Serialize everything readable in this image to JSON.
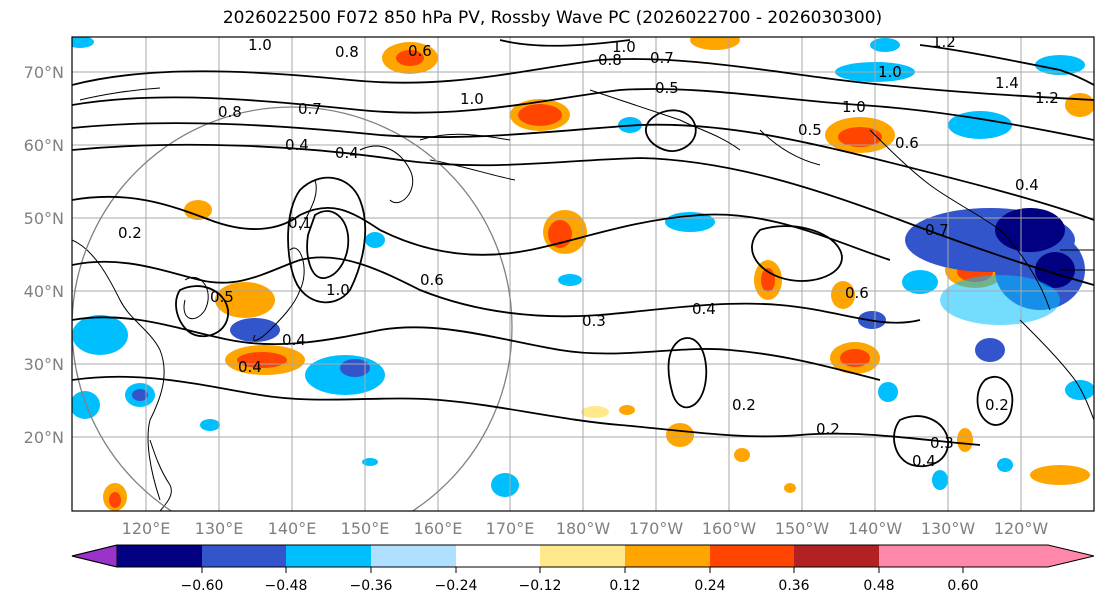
{
  "title": "2026022500 F072 850 hPa PV, Rossby Wave PC (2026022700 - 2026030300)",
  "lat_labels": [
    "70°N",
    "60°N",
    "50°N",
    "40°N",
    "30°N",
    "20°N"
  ],
  "lon_labels": [
    "120°E",
    "130°E",
    "140°E",
    "150°E",
    "160°E",
    "170°E",
    "180°W",
    "170°W",
    "160°W",
    "150°W",
    "140°W",
    "130°W",
    "120°W"
  ],
  "colorbar": {
    "colors": [
      "#9933cc",
      "#000080",
      "#3355cc",
      "#00bfff",
      "#b0e0ff",
      "#ffffff",
      "#ffe98a",
      "#ffa500",
      "#ff4500",
      "#b22222",
      "#ff88aa"
    ],
    "labels": [
      "−0.60",
      "−0.48",
      "−0.36",
      "−0.24",
      "−0.12",
      "0.12",
      "0.24",
      "0.36",
      "0.48",
      "0.60"
    ]
  },
  "contour_labels": [
    "1.0",
    "0.8",
    "0.6",
    "1.0",
    "0.7",
    "0.8",
    "0.5",
    "1.2",
    "1.0",
    "1.4",
    "1.2",
    "0.8",
    "0.7",
    "1.0",
    "0.4",
    "0.4",
    "0.5",
    "1.0",
    "0.4",
    "0.6",
    "0.7",
    "0.1",
    "0.6",
    "0.3",
    "0.4",
    "0.6",
    "1.0",
    "0.5",
    "0.4",
    "0.4",
    "0.2",
    "0.2",
    "0.2",
    "0.3",
    "0.4",
    "0.2"
  ]
}
